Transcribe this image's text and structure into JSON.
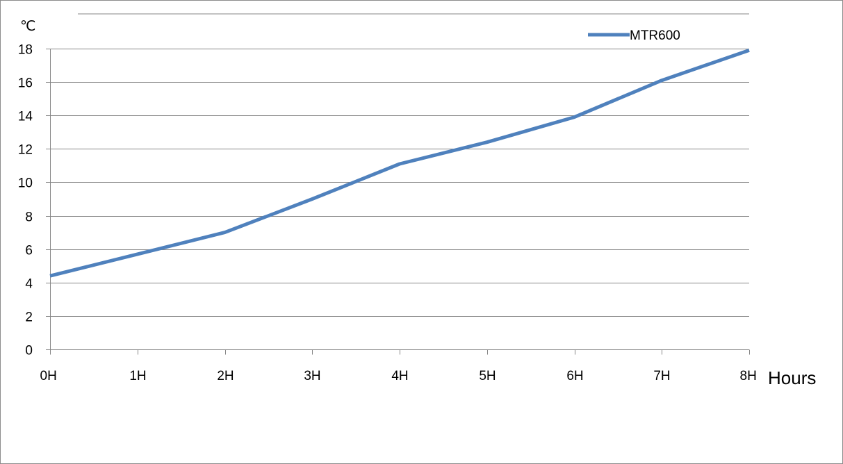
{
  "chart_data": {
    "type": "line",
    "title": "",
    "xlabel": "Hours",
    "ylabel": "℃",
    "categories": [
      "0H",
      "1H",
      "2H",
      "3H",
      "4H",
      "5H",
      "6H",
      "7H",
      "8H"
    ],
    "ylim": [
      0,
      18
    ],
    "yticks": [
      "0",
      "2",
      "4",
      "6",
      "8",
      "10",
      "12",
      "14",
      "16",
      "18"
    ],
    "grid": true,
    "legend_position": "top-right",
    "series": [
      {
        "name": "MTR600",
        "color": "#4f81bd",
        "values": [
          4.4,
          5.7,
          7.0,
          9.0,
          11.1,
          12.4,
          13.9,
          16.1,
          17.9
        ]
      }
    ]
  }
}
